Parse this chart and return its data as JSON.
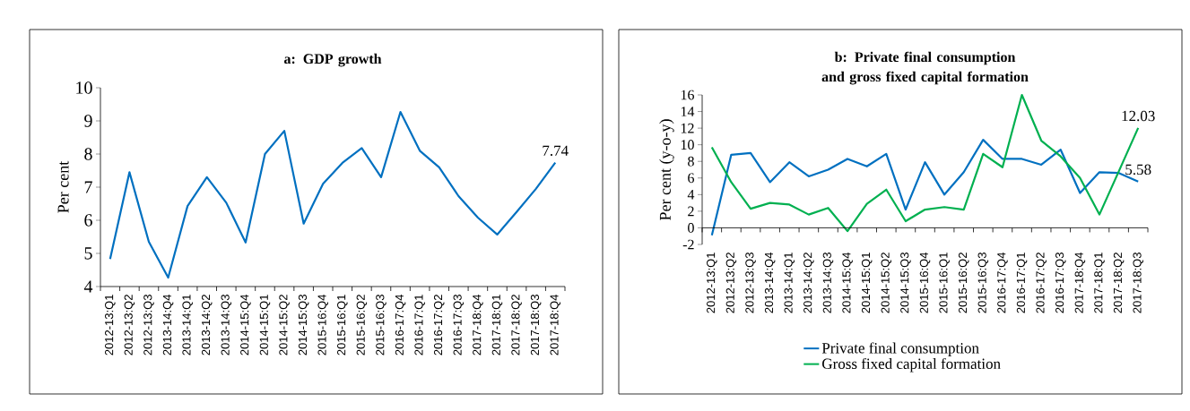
{
  "chart_data": [
    {
      "type": "line",
      "title": "a: GDP growth",
      "ylabel": "Per cent",
      "categories": [
        "2012-13:Q1",
        "2012-13:Q2",
        "2012-13:Q3",
        "2013-14:Q4",
        "2013-14:Q1",
        "2013-14:Q2",
        "2013-14:Q3",
        "2014-15:Q4",
        "2014-15:Q1",
        "2014-15:Q2",
        "2014-15:Q3",
        "2015-16:Q4",
        "2015-16:Q1",
        "2015-16:Q2",
        "2015-16:Q3",
        "2016-17:Q4",
        "2016-17:Q1",
        "2016-17:Q2",
        "2016-17:Q3",
        "2017-18:Q4",
        "2017-18:Q1",
        "2017-18:Q2",
        "2017-18:Q3",
        "2017-18:Q4"
      ],
      "series": [
        {
          "color": "#0070c0",
          "values": [
            4.83,
            7.45,
            5.35,
            4.27,
            6.43,
            7.3,
            6.53,
            5.33,
            8.0,
            8.7,
            5.9,
            7.1,
            7.73,
            8.18,
            7.3,
            9.27,
            8.1,
            7.6,
            6.73,
            6.08,
            5.57,
            6.25,
            6.95,
            7.74
          ]
        }
      ],
      "ylim": [
        4,
        10
      ],
      "yticks": [
        4,
        5,
        6,
        7,
        8,
        9,
        10
      ],
      "annotations": [
        "7.74"
      ]
    },
    {
      "type": "line",
      "title": "b: Private final consumption and gross fixed capital formation",
      "ylabel": "Per cent (y-o-y)",
      "categories": [
        "2012-13:Q1",
        "2012-13:Q2",
        "2012-13:Q3",
        "2013-14:Q4",
        "2013-14:Q1",
        "2013-14:Q2",
        "2013-14:Q3",
        "2014-15:Q4",
        "2014-15:Q1",
        "2014-15:Q2",
        "2014-15:Q3",
        "2015-16:Q4",
        "2015-16:Q1",
        "2015-16:Q2",
        "2015-16:Q3",
        "2016-17:Q4",
        "2016-17:Q1",
        "2016-17:Q2",
        "2016-17:Q3",
        "2017-18:Q4",
        "2017-18:Q1",
        "2017-18:Q2",
        "2017-18:Q3"
      ],
      "series": [
        {
          "name": "Private final consumption",
          "color": "#0070c0",
          "values": [
            -0.9,
            8.8,
            9.0,
            5.5,
            7.9,
            6.2,
            7.0,
            8.3,
            7.4,
            8.9,
            2.2,
            7.9,
            4.0,
            6.7,
            10.6,
            8.3,
            8.3,
            7.6,
            9.4,
            4.2,
            6.7,
            6.6,
            5.58
          ]
        },
        {
          "name": "Gross fixed capital formation",
          "color": "#00b050",
          "values": [
            9.7,
            5.5,
            2.3,
            3.0,
            2.8,
            1.6,
            2.4,
            -0.4,
            2.9,
            4.6,
            0.8,
            2.2,
            2.5,
            2.2,
            8.9,
            7.3,
            16.0,
            10.5,
            8.6,
            6.0,
            1.6,
            6.8,
            12.03
          ]
        }
      ],
      "ylim": [
        -2,
        16
      ],
      "yticks": [
        -2,
        0,
        2,
        4,
        6,
        8,
        10,
        12,
        14,
        16
      ],
      "legend": "bottom",
      "annotations": [
        "5.58",
        "12.03"
      ]
    }
  ]
}
